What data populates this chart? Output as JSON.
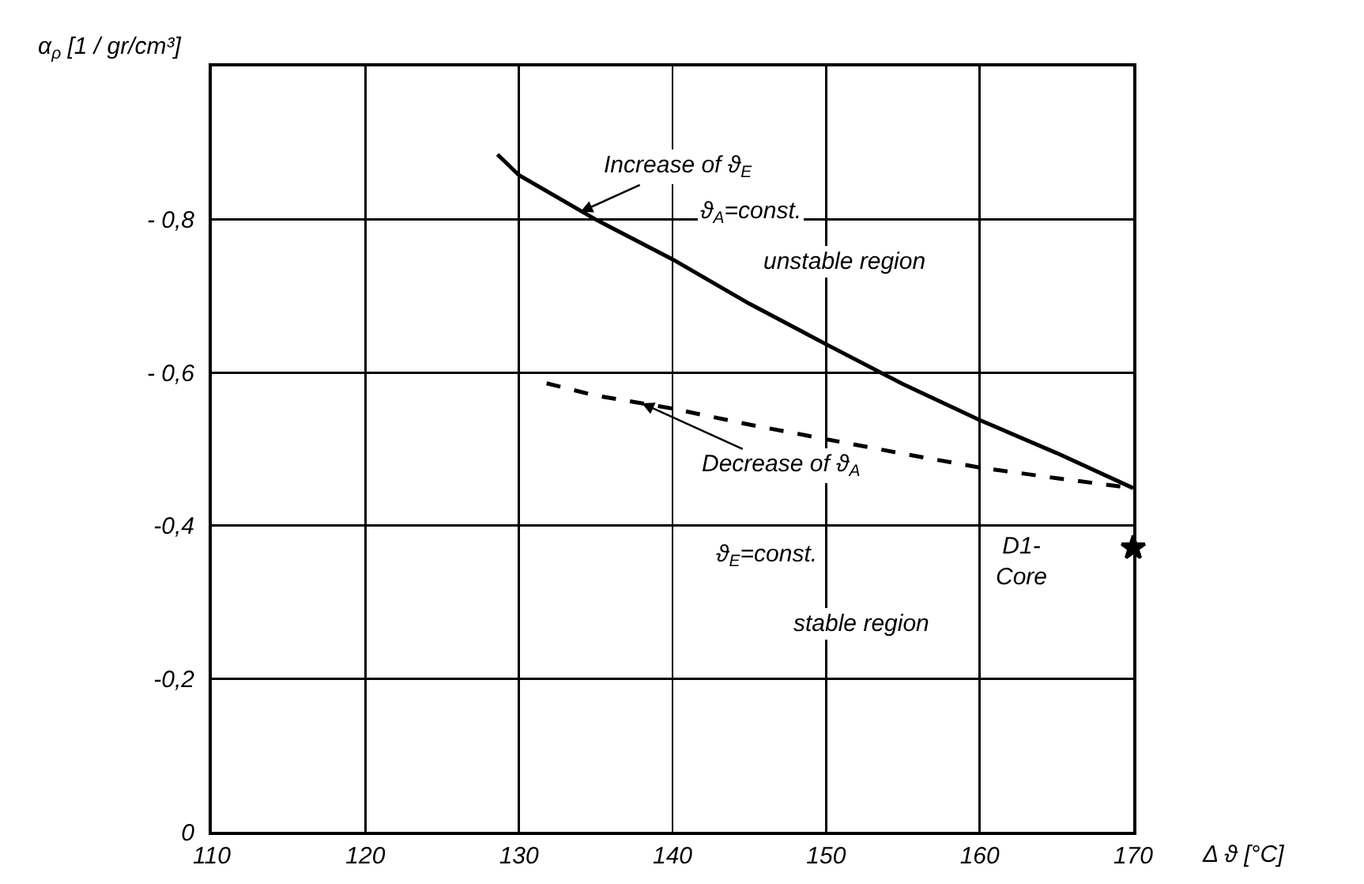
{
  "chart_data": {
    "type": "line",
    "xlabel": "Δ ϑ [°C]",
    "ylabel": "α$_{ρ}$ [1 / gr/cm³]",
    "xlim": [
      110,
      170
    ],
    "xticks": [
      110,
      120,
      130,
      140,
      150,
      160,
      170
    ],
    "ylim": [
      0,
      -1.0
    ],
    "yticks": [
      {
        "value": 0,
        "label": "0"
      },
      {
        "value": -0.2,
        "label": "-0,2"
      },
      {
        "value": -0.4,
        "label": "-0,4"
      },
      {
        "value": -0.6,
        "label": "- 0,6"
      },
      {
        "value": -0.8,
        "label": "- 0,8"
      }
    ],
    "grid": true,
    "series": [
      {
        "color": "#000000",
        "line_style": "solid",
        "x": [
          128.6,
          130,
          135,
          140,
          145,
          150,
          155,
          160,
          165,
          170
        ],
        "values": [
          -0.885,
          -0.858,
          -0.8,
          -0.748,
          -0.69,
          -0.637,
          -0.585,
          -0.538,
          -0.495,
          -0.449
        ]
      },
      {
        "color": "#000000",
        "line_style": "dashed",
        "x": [
          131.8,
          135,
          140,
          145,
          150,
          155,
          160,
          165,
          170
        ],
        "values": [
          -0.586,
          -0.57,
          -0.553,
          -0.532,
          -0.513,
          -0.494,
          -0.476,
          -0.462,
          -0.449
        ]
      },
      {
        "type": "scatter",
        "marker": "star",
        "color": "#000000",
        "x": [
          170
        ],
        "values": [
          -0.371
        ]
      }
    ],
    "annotations": [
      {
        "text": "Increase of ϑ$_{E}$",
        "x": 134,
        "y": -0.81
      },
      "ϑ$_{A}$=const.",
      "unstable region",
      {
        "text": "Decrease of ϑ$_{A}$",
        "x": 138,
        "y": -0.56
      },
      "ϑ$_{E}$=const.",
      "D1-\nCore",
      "stable region"
    ]
  }
}
